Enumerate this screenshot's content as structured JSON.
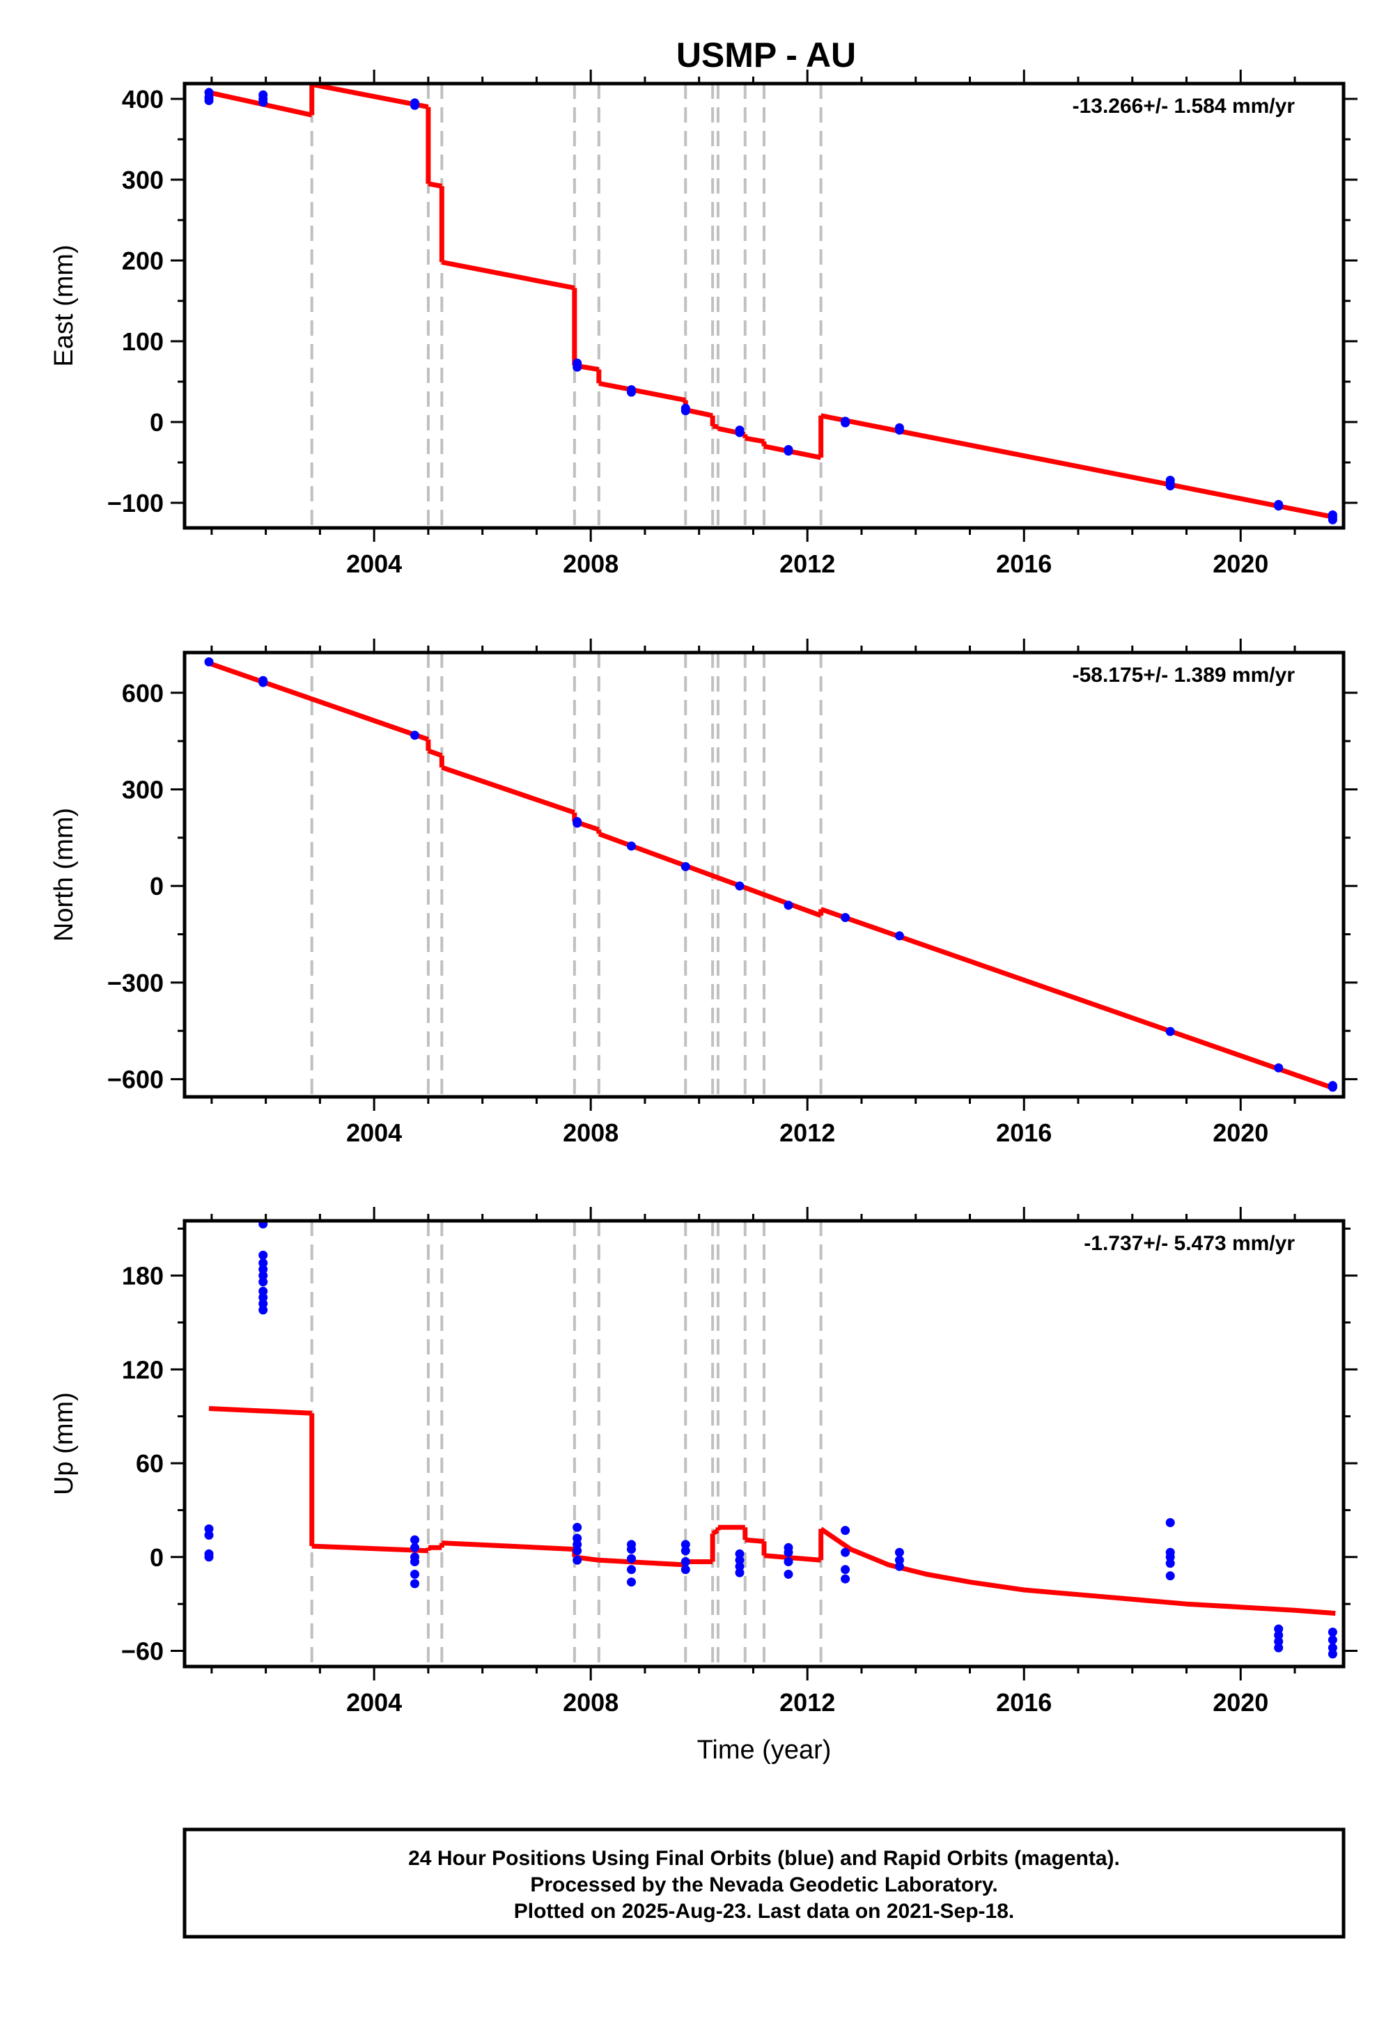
{
  "chart_data": [
    {
      "type": "line",
      "title": "USMP - AU",
      "ylabel": "East (mm)",
      "xlabel": "",
      "rate": "-13.266+/- 1.584 mm/yr",
      "xlim": [
        2000.5,
        2021.9
      ],
      "ylim": [
        -131,
        419
      ],
      "xticks": [
        2004,
        2008,
        2012,
        2016,
        2020
      ],
      "yticks": [
        -100,
        0,
        100,
        200,
        300,
        400
      ],
      "event_lines": [
        2002.85,
        2005.0,
        2005.25,
        2007.7,
        2008.15,
        2009.75,
        2010.25,
        2010.35,
        2010.85,
        2011.2,
        2012.25
      ],
      "model_color": "#ff0000",
      "data_color": "#0000ff",
      "model_segments": [
        [
          [
            2000.95,
            408
          ],
          [
            2002.85,
            380
          ]
        ],
        [
          [
            2002.85,
            418
          ],
          [
            2005.0,
            390
          ]
        ],
        [
          [
            2005.0,
            295
          ],
          [
            2005.25,
            292
          ]
        ],
        [
          [
            2005.25,
            198
          ],
          [
            2007.7,
            166
          ]
        ],
        [
          [
            2007.7,
            70
          ],
          [
            2008.15,
            65
          ]
        ],
        [
          [
            2008.15,
            48
          ],
          [
            2009.75,
            27
          ]
        ],
        [
          [
            2009.75,
            15
          ],
          [
            2010.25,
            8
          ]
        ],
        [
          [
            2010.25,
            -5
          ],
          [
            2010.35,
            -6
          ]
        ],
        [
          [
            2010.35,
            -8
          ],
          [
            2010.85,
            -15
          ]
        ],
        [
          [
            2010.85,
            -20
          ],
          [
            2011.2,
            -24
          ]
        ],
        [
          [
            2011.2,
            -30
          ],
          [
            2012.25,
            -44
          ]
        ],
        [
          [
            2012.25,
            8
          ],
          [
            2021.75,
            -118
          ]
        ]
      ],
      "points": [
        [
          2000.95,
          408
        ],
        [
          2000.95,
          402
        ],
        [
          2000.95,
          398
        ],
        [
          2001.95,
          405
        ],
        [
          2001.95,
          400
        ],
        [
          2001.95,
          396
        ],
        [
          2004.75,
          395
        ],
        [
          2004.75,
          392
        ],
        [
          2007.75,
          73
        ],
        [
          2007.75,
          68
        ],
        [
          2008.75,
          40
        ],
        [
          2008.75,
          37
        ],
        [
          2009.75,
          17
        ],
        [
          2009.75,
          14
        ],
        [
          2010.75,
          -10
        ],
        [
          2010.75,
          -13
        ],
        [
          2011.65,
          -34
        ],
        [
          2011.65,
          -36
        ],
        [
          2012.7,
          1
        ],
        [
          2012.7,
          -1
        ],
        [
          2013.7,
          -7
        ],
        [
          2013.7,
          -10
        ],
        [
          2018.7,
          -72
        ],
        [
          2018.7,
          -76
        ],
        [
          2018.7,
          -79
        ],
        [
          2020.7,
          -102
        ],
        [
          2020.7,
          -104
        ],
        [
          2021.7,
          -115
        ],
        [
          2021.7,
          -118
        ],
        [
          2021.7,
          -121
        ]
      ]
    },
    {
      "type": "line",
      "title": "",
      "ylabel": "North (mm)",
      "xlabel": "",
      "rate": "-58.175+/- 1.389 mm/yr",
      "xlim": [
        2000.5,
        2021.9
      ],
      "ylim": [
        -655,
        725
      ],
      "xticks": [
        2004,
        2008,
        2012,
        2016,
        2020
      ],
      "yticks": [
        -600,
        -300,
        0,
        300,
        600
      ],
      "event_lines": [
        2002.85,
        2005.0,
        2005.25,
        2007.7,
        2008.15,
        2009.75,
        2010.25,
        2010.35,
        2010.85,
        2011.2,
        2012.25
      ],
      "model_color": "#ff0000",
      "data_color": "#0000ff",
      "model_segments": [
        [
          [
            2000.95,
            692
          ],
          [
            2005.0,
            455
          ]
        ],
        [
          [
            2005.0,
            420
          ],
          [
            2005.25,
            405
          ]
        ],
        [
          [
            2005.25,
            368
          ],
          [
            2007.7,
            228
          ]
        ],
        [
          [
            2007.7,
            200
          ],
          [
            2008.15,
            175
          ]
        ],
        [
          [
            2008.15,
            162
          ],
          [
            2012.25,
            -92
          ]
        ],
        [
          [
            2012.25,
            -72
          ],
          [
            2021.75,
            -630
          ]
        ]
      ],
      "points": [
        [
          2000.95,
          696
        ],
        [
          2001.95,
          638
        ],
        [
          2001.95,
          632
        ],
        [
          2004.75,
          468
        ],
        [
          2007.75,
          200
        ],
        [
          2007.75,
          195
        ],
        [
          2008.75,
          124
        ],
        [
          2009.75,
          60
        ],
        [
          2010.75,
          0
        ],
        [
          2011.65,
          -60
        ],
        [
          2012.7,
          -98
        ],
        [
          2013.7,
          -155
        ],
        [
          2018.7,
          -452
        ],
        [
          2020.7,
          -565
        ],
        [
          2021.7,
          -620
        ],
        [
          2021.7,
          -625
        ]
      ]
    },
    {
      "type": "line",
      "title": "",
      "ylabel": "Up (mm)",
      "xlabel": "Time (year)",
      "rate": "-1.737+/- 5.473 mm/yr",
      "xlim": [
        2000.5,
        2021.9
      ],
      "ylim": [
        -70,
        215
      ],
      "xticks": [
        2004,
        2008,
        2012,
        2016,
        2020
      ],
      "yticks": [
        -60,
        0,
        60,
        120,
        180
      ],
      "event_lines": [
        2002.85,
        2005.0,
        2005.25,
        2007.7,
        2008.15,
        2009.75,
        2010.25,
        2010.35,
        2010.85,
        2011.2,
        2012.25
      ],
      "model_color": "#ff0000",
      "data_color": "#0000ff",
      "model_segments": [
        [
          [
            2000.95,
            95
          ],
          [
            2002.85,
            92
          ]
        ],
        [
          [
            2002.85,
            7
          ],
          [
            2005.0,
            4
          ]
        ],
        [
          [
            2005.0,
            6
          ],
          [
            2005.25,
            6
          ]
        ],
        [
          [
            2005.25,
            9
          ],
          [
            2007.7,
            5
          ]
        ],
        [
          [
            2007.7,
            0
          ],
          [
            2008.15,
            -2
          ]
        ],
        [
          [
            2008.15,
            -2
          ],
          [
            2009.75,
            -5
          ]
        ],
        [
          [
            2009.75,
            -3
          ],
          [
            2010.25,
            -3
          ]
        ],
        [
          [
            2010.25,
            15
          ],
          [
            2010.35,
            17
          ]
        ],
        [
          [
            2010.35,
            19
          ],
          [
            2010.85,
            19
          ]
        ],
        [
          [
            2010.85,
            11
          ],
          [
            2011.2,
            10
          ]
        ],
        [
          [
            2011.2,
            1
          ],
          [
            2012.25,
            -2
          ]
        ],
        [
          [
            2012.25,
            18
          ],
          [
            2012.8,
            5
          ],
          [
            2013.5,
            -5
          ],
          [
            2014.2,
            -11
          ],
          [
            2015.0,
            -16
          ],
          [
            2016.0,
            -21
          ],
          [
            2017.0,
            -24
          ],
          [
            2018.0,
            -27
          ],
          [
            2019.0,
            -30
          ],
          [
            2020.0,
            -32
          ],
          [
            2021.0,
            -34
          ],
          [
            2021.75,
            -36
          ]
        ]
      ],
      "points": [
        [
          2000.95,
          18
        ],
        [
          2000.95,
          14
        ],
        [
          2000.95,
          2
        ],
        [
          2000.95,
          0
        ],
        [
          2001.95,
          213
        ],
        [
          2001.95,
          193
        ],
        [
          2001.95,
          188
        ],
        [
          2001.95,
          184
        ],
        [
          2001.95,
          180
        ],
        [
          2001.95,
          176
        ],
        [
          2001.95,
          170
        ],
        [
          2001.95,
          166
        ],
        [
          2001.95,
          162
        ],
        [
          2001.95,
          158
        ],
        [
          2004.75,
          11
        ],
        [
          2004.75,
          6
        ],
        [
          2004.75,
          0
        ],
        [
          2004.75,
          -3
        ],
        [
          2004.75,
          -11
        ],
        [
          2004.75,
          -17
        ],
        [
          2007.75,
          19
        ],
        [
          2007.75,
          12
        ],
        [
          2007.75,
          8
        ],
        [
          2007.75,
          4
        ],
        [
          2007.75,
          -2
        ],
        [
          2008.75,
          8
        ],
        [
          2008.75,
          5
        ],
        [
          2008.75,
          -1
        ],
        [
          2008.75,
          -8
        ],
        [
          2008.75,
          -16
        ],
        [
          2009.75,
          8
        ],
        [
          2009.75,
          4
        ],
        [
          2009.75,
          -3
        ],
        [
          2009.75,
          -8
        ],
        [
          2010.75,
          2
        ],
        [
          2010.75,
          -2
        ],
        [
          2010.75,
          -6
        ],
        [
          2010.75,
          -10
        ],
        [
          2011.65,
          6
        ],
        [
          2011.65,
          3
        ],
        [
          2011.65,
          -3
        ],
        [
          2011.65,
          -11
        ],
        [
          2012.7,
          17
        ],
        [
          2012.7,
          3
        ],
        [
          2012.7,
          -8
        ],
        [
          2012.7,
          -14
        ],
        [
          2013.7,
          3
        ],
        [
          2013.7,
          -2
        ],
        [
          2013.7,
          -6
        ],
        [
          2018.7,
          22
        ],
        [
          2018.7,
          3
        ],
        [
          2018.7,
          0
        ],
        [
          2018.7,
          -4
        ],
        [
          2018.7,
          -12
        ],
        [
          2020.7,
          -46
        ],
        [
          2020.7,
          -50
        ],
        [
          2020.7,
          -54
        ],
        [
          2020.7,
          -58
        ],
        [
          2021.7,
          -48
        ],
        [
          2021.7,
          -53
        ],
        [
          2021.7,
          -58
        ],
        [
          2021.7,
          -62
        ]
      ]
    }
  ],
  "caption": {
    "line1": "24 Hour Positions Using Final Orbits (blue) and Rapid Orbits (magenta).",
    "line2": "Processed by the Nevada Geodetic Laboratory.",
    "line3": "Plotted on 2025-Aug-23. Last data on 2021-Sep-18."
  }
}
